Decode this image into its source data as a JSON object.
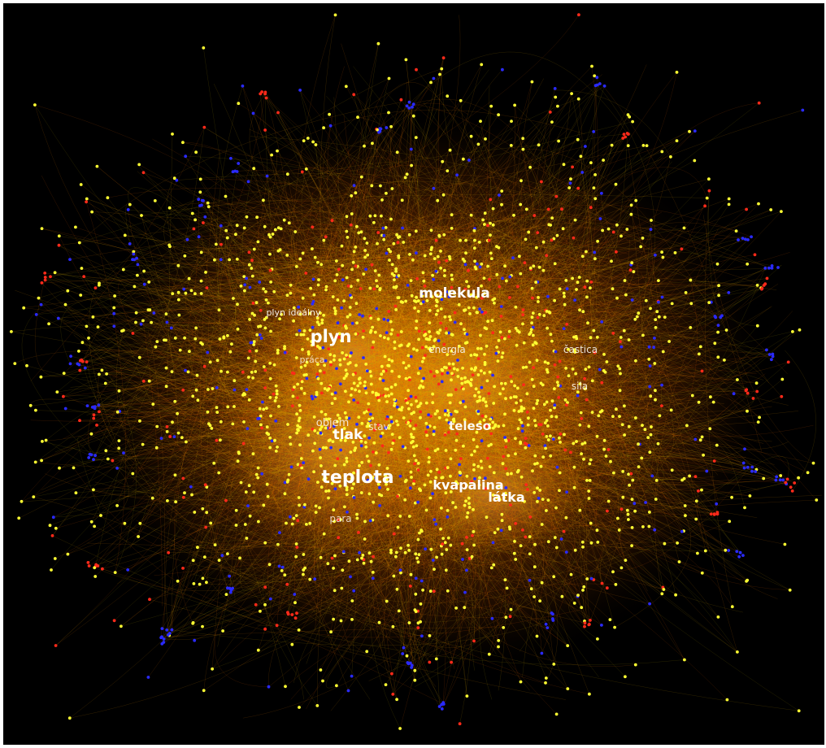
{
  "graph": {
    "background_color": "#000000",
    "node_colors": {
      "main": "#ffff33",
      "secondary": "#ff2a1a",
      "tertiary": "#2a2aff"
    },
    "edge_colors": [
      "#ff8c00",
      "#ffa500",
      "#ff6a00",
      "#e0b000",
      "#c8b400"
    ],
    "labels": [
      {
        "text": "molekula",
        "weight": "bold",
        "opacity": 1.0
      },
      {
        "text": "plyn ideálny",
        "weight": "normal",
        "opacity": 0.9
      },
      {
        "text": "plyn",
        "weight": "bold",
        "opacity": 1.0
      },
      {
        "text": "práca",
        "weight": "normal",
        "opacity": 0.75
      },
      {
        "text": "energia",
        "weight": "normal",
        "opacity": 0.85
      },
      {
        "text": "častica",
        "weight": "normal",
        "opacity": 0.85
      },
      {
        "text": "sila",
        "weight": "normal",
        "opacity": 0.85
      },
      {
        "text": "objem",
        "weight": "normal",
        "opacity": 0.8
      },
      {
        "text": "tlak",
        "weight": "bold",
        "opacity": 1.0
      },
      {
        "text": "stav",
        "weight": "normal",
        "opacity": 0.75
      },
      {
        "text": "teleso",
        "weight": "bold",
        "opacity": 0.95
      },
      {
        "text": "teplota",
        "weight": "bold",
        "opacity": 1.0
      },
      {
        "text": "kvapalina",
        "weight": "bold",
        "opacity": 1.0
      },
      {
        "text": "látka",
        "weight": "bold",
        "opacity": 1.0
      },
      {
        "text": "para",
        "weight": "normal",
        "opacity": 0.75
      }
    ]
  }
}
